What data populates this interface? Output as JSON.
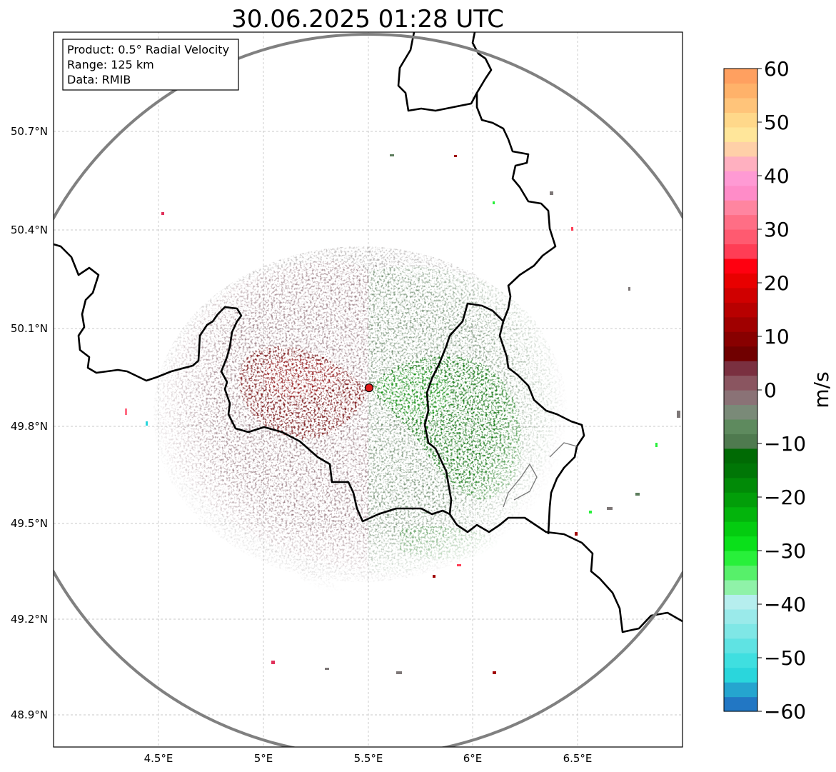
{
  "title": "30.06.2025 01:28 UTC",
  "info_box": {
    "product": "Product: 0.5° Radial Velocity",
    "range": "Range: 125 km",
    "data": "Data: RMIB"
  },
  "colorbar": {
    "unit": "m/s",
    "ticks": [
      "60",
      "50",
      "40",
      "30",
      "20",
      "10",
      "0",
      "−10",
      "−20",
      "−30",
      "−40",
      "−50",
      "−60"
    ],
    "min": -60,
    "max": 60,
    "stops": [
      "#2277c4",
      "#25a5cf",
      "#2ad6dc",
      "#3fdfe0",
      "#5fe3e3",
      "#7fe7e6",
      "#9aeaea",
      "#b6eeee",
      "#8ff2a8",
      "#57f06a",
      "#28f03a",
      "#0ae01a",
      "#04cc10",
      "#03b40c",
      "#029e09",
      "#018a07",
      "#007606",
      "#006a04",
      "#4f7a4f",
      "#5e8a5e",
      "#7a8a78",
      "#8a7276",
      "#8a5560",
      "#7a3040",
      "#700000",
      "#880000",
      "#a00000",
      "#b80000",
      "#d00000",
      "#e80000",
      "#ff0010",
      "#ff3d55",
      "#ff5a70",
      "#ff6e85",
      "#ff85a0",
      "#ff8cc8",
      "#ff9ad4",
      "#ffb0c0",
      "#ffd0a8",
      "#ffe69a",
      "#ffd88a",
      "#ffc47a",
      "#ffb26a",
      "#ffa060"
    ]
  },
  "map": {
    "x_ticks": [
      "4.5°E",
      "5°E",
      "5.5°E",
      "6°E",
      "6.5°E"
    ],
    "y_ticks": [
      "50.7°N",
      "50.4°N",
      "50.1°N",
      "49.8°N",
      "49.5°N",
      "49.2°N",
      "48.9°N"
    ],
    "radar_site": {
      "lon": 5.5,
      "lat": 49.91
    },
    "range_km": 125
  }
}
